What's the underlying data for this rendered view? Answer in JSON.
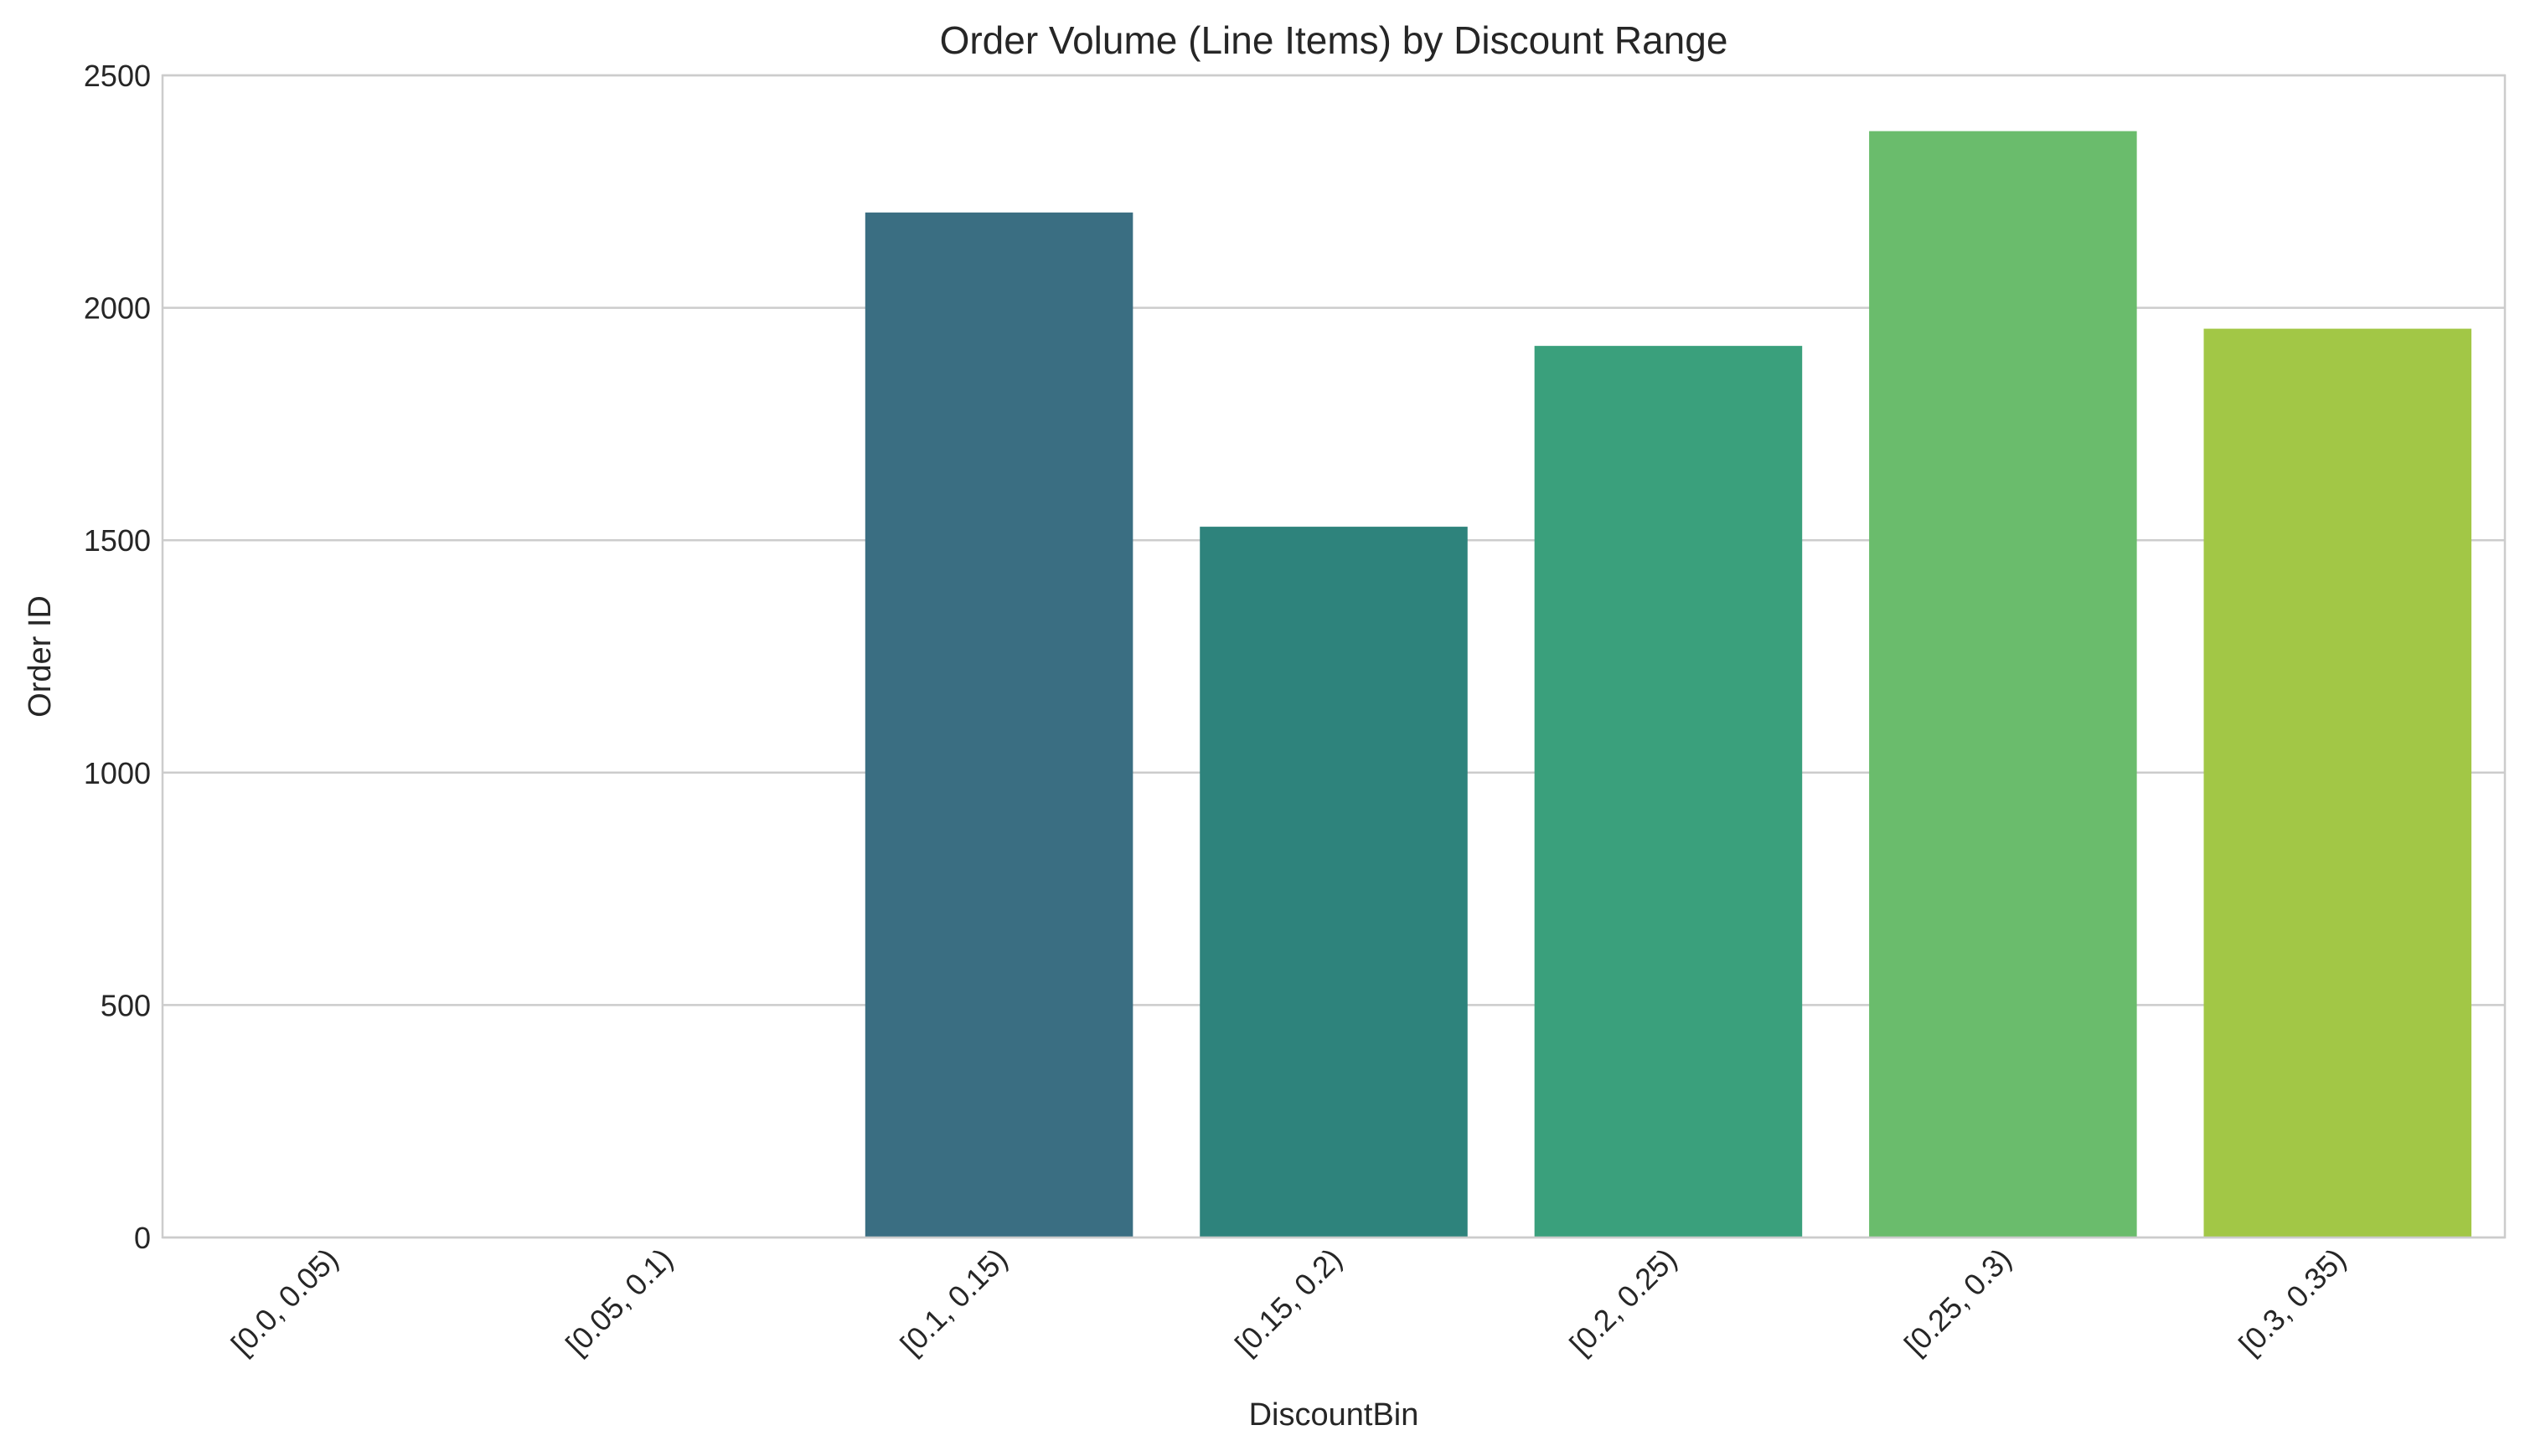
{
  "chart_data": {
    "type": "bar",
    "title": "Order Volume (Line Items) by Discount Range",
    "xlabel": "DiscountBin",
    "ylabel": "Order ID",
    "categories": [
      "[0.0, 0.05)",
      "[0.05, 0.1)",
      "[0.1, 0.15)",
      "[0.15, 0.2)",
      "[0.2, 0.25)",
      "[0.25, 0.3)",
      "[0.3, 0.35)"
    ],
    "values": [
      0,
      0,
      2205,
      1529,
      1918,
      2380,
      1955
    ],
    "colors": [
      "#443983",
      "#31688e",
      "#3a6e82",
      "#2e837c",
      "#3aa07c",
      "#6abc6c",
      "#a2c746"
    ],
    "ylim": [
      0,
      2500
    ],
    "yticks": [
      0,
      500,
      1000,
      1500,
      2000,
      2500
    ],
    "grid": true,
    "legend": "none"
  }
}
